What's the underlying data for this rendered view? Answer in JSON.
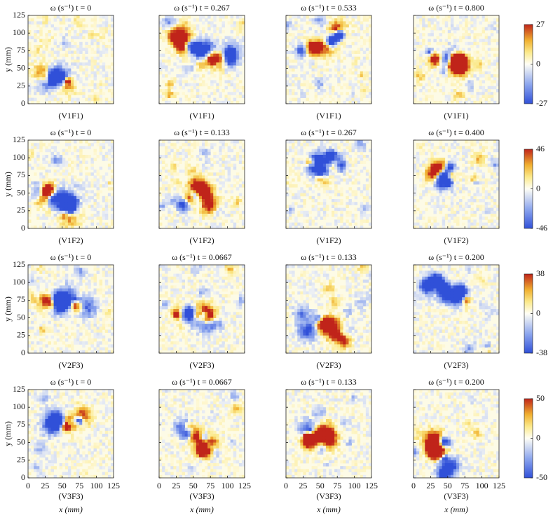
{
  "chart_data": [
    {
      "type": "heatmap",
      "ylabel": "y (mm)",
      "xlim": [
        0,
        125
      ],
      "ylim": [
        0,
        125
      ],
      "xticks": [
        0,
        25,
        50,
        75,
        100,
        125
      ],
      "yticks": [
        0,
        25,
        50,
        75,
        100,
        125
      ],
      "xticklabels": false,
      "colorbar": {
        "zlim": [
          -27,
          27
        ],
        "zticks": [
          -27,
          0,
          27
        ]
      },
      "panels": [
        {
          "title": "ω (s⁻¹) t = 0",
          "caption": "(V1F1)"
        },
        {
          "title": "ω (s⁻¹) t = 0.267",
          "caption": "(V1F1)"
        },
        {
          "title": "ω (s⁻¹) t = 0.533",
          "caption": "(V1F1)"
        },
        {
          "title": "ω (s⁻¹) t = 0.800",
          "caption": "(V1F1)"
        }
      ]
    },
    {
      "type": "heatmap",
      "ylabel": "y (mm)",
      "xlim": [
        0,
        125
      ],
      "ylim": [
        0,
        125
      ],
      "xticks": [
        0,
        25,
        50,
        75,
        100,
        125
      ],
      "yticks": [
        0,
        25,
        50,
        75,
        100,
        125
      ],
      "xticklabels": false,
      "colorbar": {
        "zlim": [
          -46,
          46
        ],
        "zticks": [
          -46,
          0,
          46
        ]
      },
      "panels": [
        {
          "title": "ω (s⁻¹) t = 0",
          "caption": "(V1F2)"
        },
        {
          "title": "ω (s⁻¹) t = 0.133",
          "caption": "(V1F2)"
        },
        {
          "title": "ω (s⁻¹) t = 0.267",
          "caption": "(V1F2)"
        },
        {
          "title": "ω (s⁻¹) t = 0.400",
          "caption": "(V1F2)"
        }
      ]
    },
    {
      "type": "heatmap",
      "ylabel": "y (mm)",
      "xlim": [
        0,
        125
      ],
      "ylim": [
        0,
        125
      ],
      "xticks": [
        0,
        25,
        50,
        75,
        100,
        125
      ],
      "yticks": [
        0,
        25,
        50,
        75,
        100,
        125
      ],
      "xticklabels": false,
      "colorbar": {
        "zlim": [
          -38,
          38
        ],
        "zticks": [
          -38,
          0,
          38
        ]
      },
      "panels": [
        {
          "title": "ω (s⁻¹) t = 0",
          "caption": "(V2F3)"
        },
        {
          "title": "ω (s⁻¹) t = 0.0667",
          "caption": "(V2F3)"
        },
        {
          "title": "ω (s⁻¹) t = 0.133",
          "caption": "(V2F3)"
        },
        {
          "title": "ω (s⁻¹) t = 0.200",
          "caption": "(V2F3)"
        }
      ]
    },
    {
      "type": "heatmap",
      "ylabel": "y (mm)",
      "xlabel": "x (mm)",
      "xlim": [
        0,
        125
      ],
      "ylim": [
        0,
        125
      ],
      "xticks": [
        0,
        25,
        50,
        75,
        100,
        125
      ],
      "yticks": [
        0,
        25,
        50,
        75,
        100,
        125
      ],
      "xticklabels": true,
      "colorbar": {
        "zlim": [
          -50,
          50
        ],
        "zticks": [
          -50,
          0,
          50
        ]
      },
      "panels": [
        {
          "title": "ω (s⁻¹) t = 0",
          "caption": "(V3F3)"
        },
        {
          "title": "ω (s⁻¹) t = 0.0667",
          "caption": "(V3F3)"
        },
        {
          "title": "ω (s⁻¹) t = 0.133",
          "caption": "(V3F3)"
        },
        {
          "title": "ω (s⁻¹) t = 0.200",
          "caption": "(V3F3)"
        }
      ]
    }
  ]
}
